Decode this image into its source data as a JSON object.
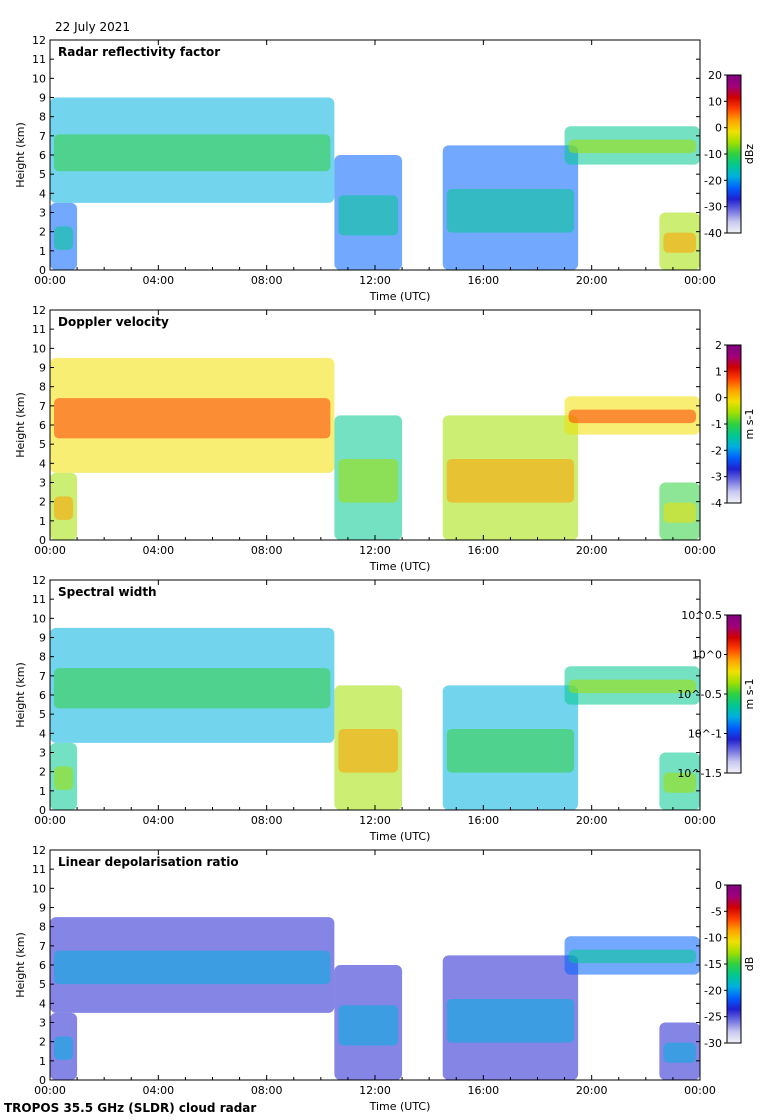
{
  "header": {
    "date": "22 July 2021"
  },
  "footer": {
    "label": "TROPOS 35.5 GHz (SLDR) cloud radar"
  },
  "colors": {
    "colormap": [
      "#f2f2f8",
      "#c8c8f0",
      "#6f6fe0",
      "#2020d0",
      "#0060ff",
      "#00b0e0",
      "#00c890",
      "#30d040",
      "#a0e000",
      "#f0e000",
      "#ffa000",
      "#ff4000",
      "#d00000",
      "#a0007a",
      "#800080"
    ]
  },
  "chart_data": [
    {
      "type": "heatmap",
      "title": "Radar reflectivity factor",
      "xlabel": "Time (UTC)",
      "ylabel": "Height (km)",
      "x_ticks": [
        "00:00",
        "04:00",
        "08:00",
        "12:00",
        "16:00",
        "20:00",
        "00:00"
      ],
      "y_ticks": [
        "0",
        "1",
        "2",
        "3",
        "4",
        "5",
        "6",
        "7",
        "8",
        "9",
        "10",
        "11",
        "12"
      ],
      "ylim": [
        0,
        12
      ],
      "colorbar": {
        "label": "dBz",
        "ticks": [
          "20",
          "10",
          "0",
          "-10",
          "-20",
          "-30",
          "-40"
        ],
        "range": [
          -40,
          20
        ]
      },
      "echoes": [
        {
          "t0": 0.0,
          "t1": 10.5,
          "h0": 3.5,
          "h1": 9.0,
          "level": 0.35
        },
        {
          "t0": 10.5,
          "t1": 13.0,
          "h0": 0.0,
          "h1": 6.0,
          "level": 0.3
        },
        {
          "t0": 14.5,
          "t1": 19.5,
          "h0": 0.0,
          "h1": 6.5,
          "level": 0.3
        },
        {
          "t0": 19.0,
          "t1": 24.0,
          "h0": 5.5,
          "h1": 7.5,
          "level": 0.45
        },
        {
          "t0": 0.0,
          "t1": 1.0,
          "h0": 0.0,
          "h1": 3.5,
          "level": 0.3
        },
        {
          "t0": 22.5,
          "t1": 24.0,
          "h0": 0.0,
          "h1": 3.0,
          "level": 0.6
        }
      ]
    },
    {
      "type": "heatmap",
      "title": "Doppler velocity",
      "xlabel": "Time (UTC)",
      "ylabel": "Height (km)",
      "x_ticks": [
        "00:00",
        "04:00",
        "08:00",
        "12:00",
        "16:00",
        "20:00",
        "00:00"
      ],
      "y_ticks": [
        "0",
        "1",
        "2",
        "3",
        "4",
        "5",
        "6",
        "7",
        "8",
        "9",
        "10",
        "11",
        "12"
      ],
      "ylim": [
        0,
        12
      ],
      "colorbar": {
        "label": "m s-1",
        "ticks": [
          "2",
          "1",
          "0",
          "-1",
          "-2",
          "-3",
          "-4"
        ],
        "range": [
          -4,
          2
        ]
      },
      "echoes": [
        {
          "t0": 0.0,
          "t1": 10.5,
          "h0": 3.5,
          "h1": 9.5,
          "level": 0.62
        },
        {
          "t0": 10.5,
          "t1": 13.0,
          "h0": 0.0,
          "h1": 6.5,
          "level": 0.45
        },
        {
          "t0": 14.5,
          "t1": 19.5,
          "h0": 0.0,
          "h1": 6.5,
          "level": 0.6
        },
        {
          "t0": 19.0,
          "t1": 24.0,
          "h0": 5.5,
          "h1": 7.5,
          "level": 0.65
        },
        {
          "t0": 0.0,
          "t1": 1.0,
          "h0": 0.0,
          "h1": 3.5,
          "level": 0.55
        },
        {
          "t0": 22.5,
          "t1": 24.0,
          "h0": 0.0,
          "h1": 3.0,
          "level": 0.5
        }
      ]
    },
    {
      "type": "heatmap",
      "title": "Spectral width",
      "xlabel": "Time (UTC)",
      "ylabel": "Height (km)",
      "x_ticks": [
        "00:00",
        "04:00",
        "08:00",
        "12:00",
        "16:00",
        "20:00",
        "00:00"
      ],
      "y_ticks": [
        "0",
        "1",
        "2",
        "3",
        "4",
        "5",
        "6",
        "7",
        "8",
        "9",
        "10",
        "11",
        "12"
      ],
      "ylim": [
        0,
        12
      ],
      "colorbar": {
        "label": "m s-1",
        "ticks": [
          "10^0.5",
          "10^0",
          "10^-0.5",
          "10^-1",
          "10^-1.5"
        ],
        "range": [
          -1.5,
          0.5
        ]
      },
      "echoes": [
        {
          "t0": 0.0,
          "t1": 10.5,
          "h0": 3.5,
          "h1": 9.5,
          "level": 0.38
        },
        {
          "t0": 10.5,
          "t1": 13.0,
          "h0": 0.0,
          "h1": 6.5,
          "level": 0.55
        },
        {
          "t0": 14.5,
          "t1": 19.5,
          "h0": 0.0,
          "h1": 6.5,
          "level": 0.35
        },
        {
          "t0": 19.0,
          "t1": 24.0,
          "h0": 5.5,
          "h1": 7.5,
          "level": 0.45
        },
        {
          "t0": 0.0,
          "t1": 1.0,
          "h0": 0.0,
          "h1": 3.5,
          "level": 0.4
        },
        {
          "t0": 22.5,
          "t1": 24.0,
          "h0": 0.0,
          "h1": 3.0,
          "level": 0.4
        }
      ]
    },
    {
      "type": "heatmap",
      "title": "Linear depolarisation ratio",
      "xlabel": "Time (UTC)",
      "ylabel": "Height (km)",
      "x_ticks": [
        "00:00",
        "04:00",
        "08:00",
        "12:00",
        "16:00",
        "20:00",
        "00:00"
      ],
      "y_ticks": [
        "0",
        "1",
        "2",
        "3",
        "4",
        "5",
        "6",
        "7",
        "8",
        "9",
        "10",
        "11",
        "12"
      ],
      "ylim": [
        0,
        12
      ],
      "colorbar": {
        "label": "dB",
        "ticks": [
          "0",
          "-5",
          "-10",
          "-15",
          "-20",
          "-25",
          "-30"
        ],
        "range": [
          -30,
          0
        ]
      },
      "echoes": [
        {
          "t0": 0.0,
          "t1": 10.5,
          "h0": 3.5,
          "h1": 8.5,
          "level": 0.22
        },
        {
          "t0": 10.5,
          "t1": 13.0,
          "h0": 0.0,
          "h1": 6.0,
          "level": 0.2
        },
        {
          "t0": 14.5,
          "t1": 19.5,
          "h0": 0.0,
          "h1": 6.5,
          "level": 0.18
        },
        {
          "t0": 19.0,
          "t1": 24.0,
          "h0": 5.5,
          "h1": 7.5,
          "level": 0.25
        },
        {
          "t0": 0.0,
          "t1": 1.0,
          "h0": 0.0,
          "h1": 3.5,
          "level": 0.2
        },
        {
          "t0": 22.5,
          "t1": 24.0,
          "h0": 0.0,
          "h1": 3.0,
          "level": 0.2
        }
      ]
    }
  ]
}
